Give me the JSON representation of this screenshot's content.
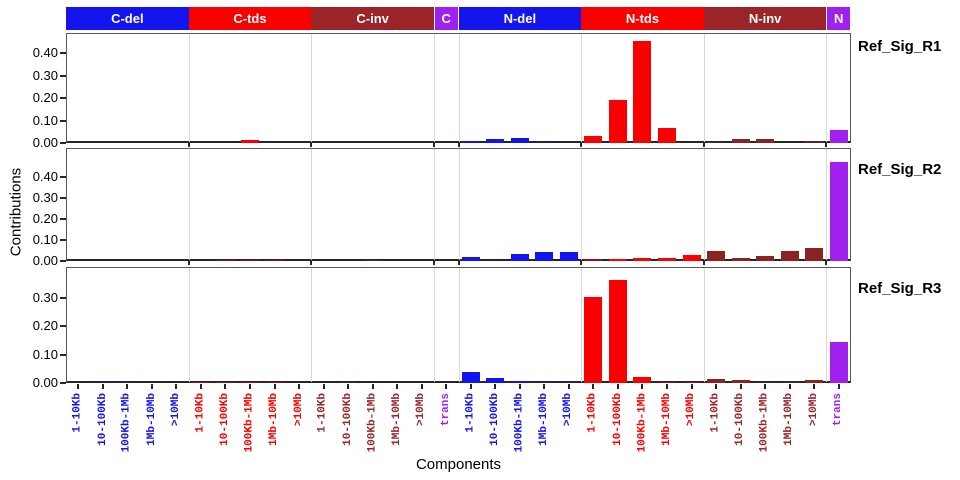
{
  "chart_data": {
    "type": "bar",
    "title": "",
    "xlabel": "Components",
    "ylabel": "Contributions",
    "legend_position": "none",
    "grid": "group-separators-only",
    "groups": [
      {
        "label": "C-del",
        "slots": 5,
        "color": "#1414EE",
        "bar_color": "#1414EE",
        "categories": [
          "1-10Kb",
          "10-100Kb",
          "100Kb-1Mb",
          "1Mb-10Mb",
          ">10Mb"
        ]
      },
      {
        "label": "C-tds",
        "slots": 5,
        "color": "#FB0000",
        "bar_color": "#FB0000",
        "categories": [
          "1-10Kb",
          "10-100Kb",
          "100Kb-1Mb",
          "1Mb-10Mb",
          ">10Mb"
        ]
      },
      {
        "label": "C-inv",
        "slots": 5,
        "color": "#9B2428",
        "bar_color": "#8B2323",
        "categories": [
          "1-10Kb",
          "10-100Kb",
          "100Kb-1Mb",
          "1Mb-10Mb",
          ">10Mb"
        ]
      },
      {
        "label": "C",
        "slots": 1,
        "color": "#A020F0",
        "bar_color": "#A020F0",
        "categories": [
          "trans"
        ]
      },
      {
        "label": "N-del",
        "slots": 5,
        "color": "#1414EE",
        "bar_color": "#1414EE",
        "categories": [
          "1-10Kb",
          "10-100Kb",
          "100Kb-1Mb",
          "1Mb-10Mb",
          ">10Mb"
        ]
      },
      {
        "label": "N-tds",
        "slots": 5,
        "color": "#FB0000",
        "bar_color": "#FB0000",
        "categories": [
          "1-10Kb",
          "10-100Kb",
          "100Kb-1Mb",
          "1Mb-10Mb",
          ">10Mb"
        ]
      },
      {
        "label": "N-inv",
        "slots": 5,
        "color": "#9B2428",
        "bar_color": "#8B2323",
        "categories": [
          "1-10Kb",
          "10-100Kb",
          "100Kb-1Mb",
          "1Mb-10Mb",
          ">10Mb"
        ]
      },
      {
        "label": "N",
        "slots": 1,
        "color": "#A020F0",
        "bar_color": "#A020F0",
        "categories": [
          "trans"
        ]
      }
    ],
    "panels": [
      {
        "name": "Ref_Sig_R1",
        "ylim": [
          0,
          0.49
        ],
        "yticks": [
          "0.00",
          "0.10",
          "0.20",
          "0.30",
          "0.40"
        ],
        "values": [
          0,
          0,
          0,
          0,
          0,
          0,
          0,
          0.012,
          0,
          0,
          0,
          0,
          0,
          0,
          0,
          0,
          0.011,
          0.016,
          0.021,
          0.003,
          0,
          0.031,
          0.19,
          0.453,
          0.065,
          0,
          0.005,
          0.02,
          0.02,
          0,
          0.008,
          0.057
        ]
      },
      {
        "name": "Ref_Sig_R2",
        "ylim": [
          0,
          0.54
        ],
        "yticks": [
          "0.00",
          "0.10",
          "0.20",
          "0.30",
          "0.40"
        ],
        "values": [
          0,
          0,
          0,
          0,
          0,
          0,
          0.002,
          0.003,
          0.002,
          0,
          0,
          0,
          0.002,
          0,
          0,
          0,
          0.021,
          0.004,
          0.034,
          0.045,
          0.041,
          0.008,
          0.011,
          0.016,
          0.013,
          0.028,
          0.05,
          0.016,
          0.022,
          0.046,
          0.062,
          0.475
        ]
      },
      {
        "name": "Ref_Sig_R3",
        "ylim": [
          0,
          0.41
        ],
        "yticks": [
          "0.00",
          "0.10",
          "0.20",
          "0.30"
        ],
        "values": [
          0,
          0.002,
          0.002,
          0,
          0,
          0.002,
          0.005,
          0.003,
          0.002,
          0,
          0,
          0.002,
          0,
          0,
          0,
          0,
          0.04,
          0.018,
          0.008,
          0.002,
          0.002,
          0.305,
          0.365,
          0.02,
          0.003,
          0.004,
          0.015,
          0.012,
          0.002,
          0.002,
          0.012,
          0.145
        ]
      }
    ]
  }
}
